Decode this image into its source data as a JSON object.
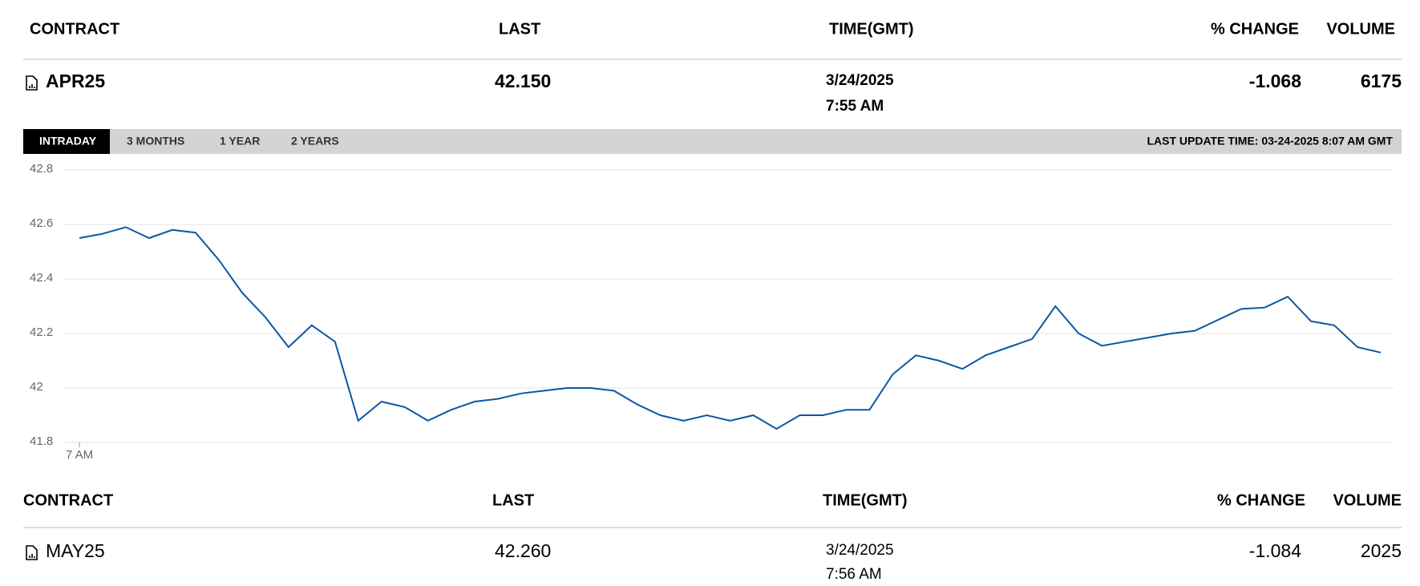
{
  "sections": [
    {
      "header": [
        "CONTRACT",
        "LAST",
        "TIME(GMT)",
        "% CHANGE",
        "VOLUME"
      ],
      "row": {
        "contract": "APR25",
        "last": "42.150",
        "date": "3/24/2025",
        "time": "7:55 AM",
        "change": "-1.068",
        "volume": "6175"
      }
    },
    {
      "header": [
        "CONTRACT",
        "LAST",
        "TIME(GMT)",
        "% CHANGE",
        "VOLUME"
      ],
      "row": {
        "contract": "MAY25",
        "last": "42.260",
        "date": "3/24/2025",
        "time": "7:56 AM",
        "change": "-1.084",
        "volume": "2025"
      }
    }
  ],
  "tabs": [
    "INTRADAY",
    "3 MONTHS",
    "1 YEAR",
    "2 YEARS"
  ],
  "last_update": "LAST UPDATE TIME: 03-24-2025 8:07 AM GMT",
  "chart_data": {
    "type": "line",
    "categories": [
      "7 AM",
      null,
      null,
      null,
      null,
      null,
      null,
      null,
      null,
      null,
      null,
      null,
      null,
      null,
      null,
      null,
      null,
      null,
      null,
      null,
      null,
      null,
      null,
      null,
      null,
      null,
      null,
      null,
      null,
      null,
      null,
      null,
      null,
      null,
      null,
      null,
      null,
      null,
      null,
      null,
      null,
      null,
      null,
      null,
      null,
      null,
      null,
      null,
      null,
      null,
      null,
      null,
      null,
      null,
      null,
      null,
      null
    ],
    "series": [
      {
        "color": "#0b57a4",
        "values": [
          42.55,
          42.566,
          42.59,
          42.55,
          42.58,
          42.57,
          42.47,
          42.35,
          42.26,
          42.15,
          42.23,
          42.17,
          41.88,
          41.95,
          41.93,
          41.88,
          41.92,
          41.95,
          41.96,
          41.98,
          41.99,
          42.0,
          42.0,
          41.99,
          41.94,
          41.9,
          41.88,
          41.9,
          41.88,
          41.9,
          41.85,
          41.9,
          41.9,
          41.92,
          41.92,
          42.05,
          42.12,
          42.1,
          42.07,
          42.12,
          42.15,
          42.18,
          42.3,
          42.2,
          42.155,
          42.17,
          42.185,
          42.2,
          42.21,
          42.25,
          42.29,
          42.295,
          42.335,
          42.245,
          42.23,
          42.15,
          42.13
        ]
      }
    ],
    "ylim": [
      41.8,
      42.8
    ],
    "yticks": [
      41.8,
      42,
      42.2,
      42.4,
      42.6,
      42.8
    ],
    "grid": true
  }
}
